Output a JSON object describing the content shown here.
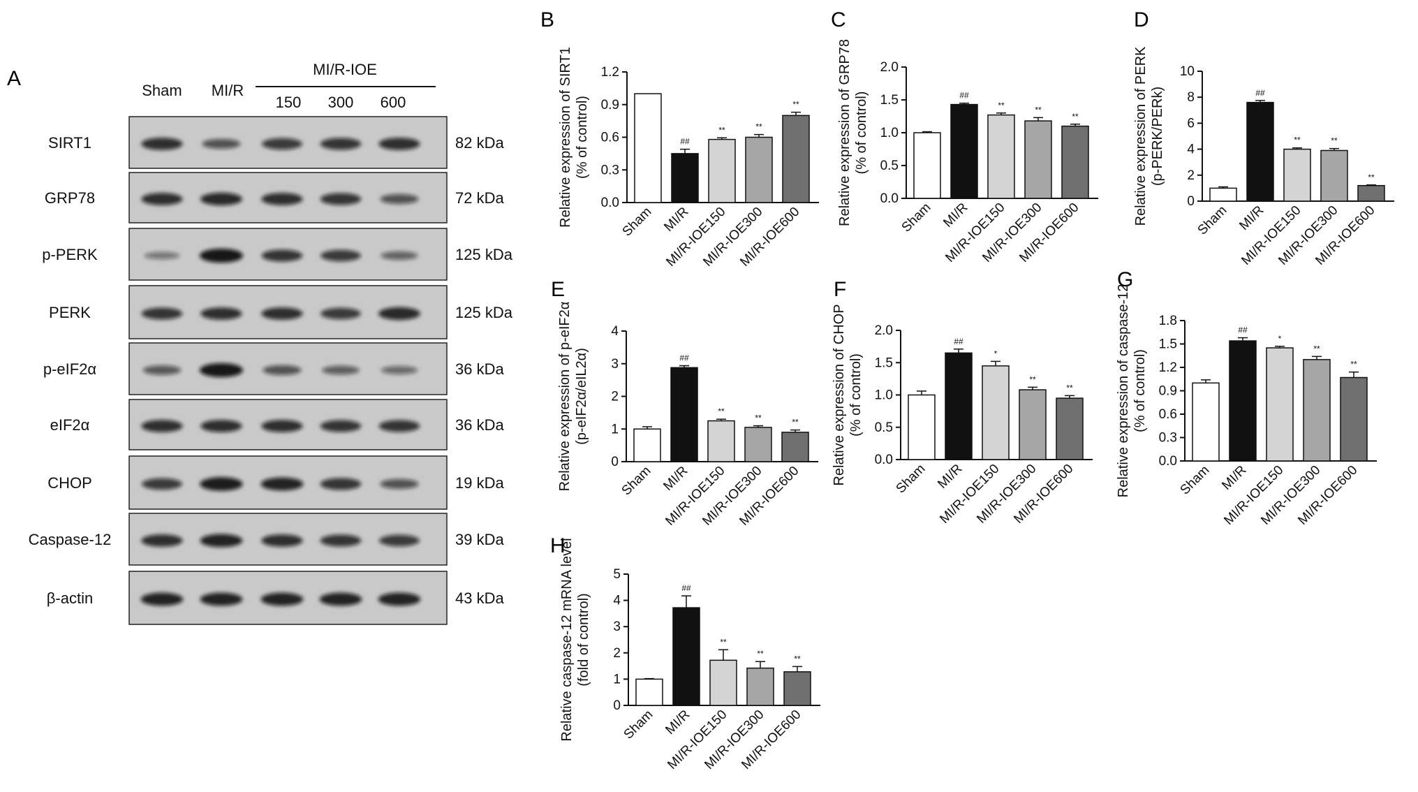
{
  "panel_a": {
    "letter": "A",
    "header_group": "MI/R-IOE",
    "lanes": [
      "Sham",
      "MI/R",
      "150",
      "300",
      "600"
    ],
    "blots": [
      {
        "protein": "SIRT1",
        "size": "82 kDa",
        "intensity": [
          0.8,
          0.5,
          0.7,
          0.75,
          0.8
        ]
      },
      {
        "protein": "GRP78",
        "size": "72 kDa",
        "intensity": [
          0.8,
          0.85,
          0.8,
          0.75,
          0.5
        ]
      },
      {
        "protein": "p-PERK",
        "size": "125 kDa",
        "intensity": [
          0.2,
          1.0,
          0.75,
          0.7,
          0.35
        ]
      },
      {
        "protein": "PERK",
        "size": "125 kDa",
        "intensity": [
          0.75,
          0.8,
          0.8,
          0.7,
          0.85
        ]
      },
      {
        "protein": "p-eIF2α",
        "size": "36 kDa",
        "intensity": [
          0.45,
          1.0,
          0.5,
          0.4,
          0.3
        ]
      },
      {
        "protein": "eIF2α",
        "size": "36 kDa",
        "intensity": [
          0.8,
          0.8,
          0.8,
          0.75,
          0.75
        ]
      },
      {
        "protein": "CHOP",
        "size": "19 kDa",
        "intensity": [
          0.7,
          0.95,
          0.9,
          0.75,
          0.5
        ]
      },
      {
        "protein": "Caspase-12",
        "size": "39 kDa",
        "intensity": [
          0.8,
          0.9,
          0.8,
          0.75,
          0.7
        ]
      },
      {
        "protein": "β-actin",
        "size": "43 kDa",
        "intensity": [
          0.9,
          0.9,
          0.9,
          0.9,
          0.9
        ]
      }
    ]
  },
  "chart_data": [
    {
      "letter": "B",
      "type": "bar",
      "categories": [
        "Sham",
        "MI/R",
        "MI/R-IOE150",
        "MI/R-IOE300",
        "MI/R-IOE600"
      ],
      "values": [
        1.0,
        0.45,
        0.58,
        0.6,
        0.8
      ],
      "errors": [
        0,
        0.04,
        0.015,
        0.025,
        0.03
      ],
      "sig": [
        "",
        "##",
        "**",
        "**",
        "**"
      ],
      "ylabel": [
        "Relative expression of SIRT1",
        "(% of control)"
      ],
      "ylim": [
        0,
        1.2
      ],
      "yticks": [
        "0.0",
        "0.3",
        "0.6",
        "0.9",
        "1.2"
      ]
    },
    {
      "letter": "C",
      "type": "bar",
      "categories": [
        "Sham",
        "MI/R",
        "MI/R-IOE150",
        "MI/R-IOE300",
        "MI/R-IOE600"
      ],
      "values": [
        1.0,
        1.43,
        1.27,
        1.18,
        1.1
      ],
      "errors": [
        0.015,
        0.02,
        0.03,
        0.05,
        0.03
      ],
      "sig": [
        "",
        "##",
        "**",
        "**",
        "**"
      ],
      "ylabel": [
        "Relative expression of GRP78",
        "(% of control)"
      ],
      "ylim": [
        0,
        2.0
      ],
      "yticks": [
        "0.0",
        "0.5",
        "1.0",
        "1.5",
        "2.0"
      ]
    },
    {
      "letter": "D",
      "type": "bar",
      "categories": [
        "Sham",
        "MI/R",
        "MI/R-IOE150",
        "MI/R-IOE300",
        "MI/R-IOE600"
      ],
      "values": [
        1.0,
        7.6,
        4.0,
        3.9,
        1.2
      ],
      "errors": [
        0.1,
        0.15,
        0.1,
        0.15,
        0.05
      ],
      "sig": [
        "",
        "##",
        "**",
        "**",
        "**"
      ],
      "ylabel": [
        "Relative expression of PERK",
        "(p-PERK/PERk)"
      ],
      "ylim": [
        0,
        10
      ],
      "yticks": [
        "0",
        "2",
        "4",
        "6",
        "8",
        "10"
      ]
    },
    {
      "letter": "E",
      "type": "bar",
      "categories": [
        "Sham",
        "MI/R",
        "MI/R-IOE150",
        "MI/R-IOE300",
        "MI/R-IOE600"
      ],
      "values": [
        1.0,
        2.88,
        1.25,
        1.05,
        0.9
      ],
      "errors": [
        0.07,
        0.06,
        0.05,
        0.05,
        0.07
      ],
      "sig": [
        "",
        "##",
        "**",
        "**",
        "**"
      ],
      "ylabel": [
        "Relative expression of p-eIF2α",
        "(p-eIF2α/eIL2α)"
      ],
      "ylim": [
        0,
        4
      ],
      "yticks": [
        "0",
        "1",
        "2",
        "3",
        "4"
      ]
    },
    {
      "letter": "F",
      "type": "bar",
      "categories": [
        "Sham",
        "MI/R",
        "MI/R-IOE150",
        "MI/R-IOE300",
        "MI/R-IOE600"
      ],
      "values": [
        1.0,
        1.65,
        1.45,
        1.08,
        0.95
      ],
      "errors": [
        0.06,
        0.06,
        0.07,
        0.04,
        0.04
      ],
      "sig": [
        "",
        "##",
        "*",
        "**",
        "**"
      ],
      "ylabel": [
        "Relative expression of CHOP",
        "(% of control)"
      ],
      "ylim": [
        0,
        2.0
      ],
      "yticks": [
        "0.0",
        "0.5",
        "1.0",
        "1.5",
        "2.0"
      ]
    },
    {
      "letter": "G",
      "type": "bar",
      "categories": [
        "Sham",
        "MI/R",
        "MI/R-IOE150",
        "MI/R-IOE300",
        "MI/R-IOE600"
      ],
      "values": [
        1.0,
        1.54,
        1.45,
        1.3,
        1.07
      ],
      "errors": [
        0.04,
        0.04,
        0.02,
        0.04,
        0.07
      ],
      "sig": [
        "",
        "##",
        "*",
        "**",
        "**"
      ],
      "ylabel": [
        "Relative expression of caspase-12",
        "(% of control)"
      ],
      "ylim": [
        0,
        1.8
      ],
      "yticks": [
        "0.0",
        "0.3",
        "0.6",
        "0.9",
        "1.2",
        "1.5",
        "1.8"
      ]
    },
    {
      "letter": "H",
      "type": "bar",
      "categories": [
        "Sham",
        "MI/R",
        "MI/R-IOE150",
        "MI/R-IOE300",
        "MI/R-IOE600"
      ],
      "values": [
        1.0,
        3.72,
        1.72,
        1.42,
        1.28
      ],
      "errors": [
        0.02,
        0.45,
        0.4,
        0.25,
        0.2
      ],
      "sig": [
        "",
        "##",
        "**",
        "**",
        "**"
      ],
      "ylabel": [
        "Relative caspase-12 mRNA level",
        "(fold of control)"
      ],
      "ylim": [
        0,
        5
      ],
      "yticks": [
        "0",
        "1",
        "2",
        "3",
        "4",
        "5"
      ]
    }
  ],
  "colors": {
    "bars": [
      "#ffffff",
      "#111111",
      "#d4d4d4",
      "#a6a6a6",
      "#6f6f6f"
    ],
    "blot_bg": "#c9c9c9",
    "band": "#101010"
  }
}
